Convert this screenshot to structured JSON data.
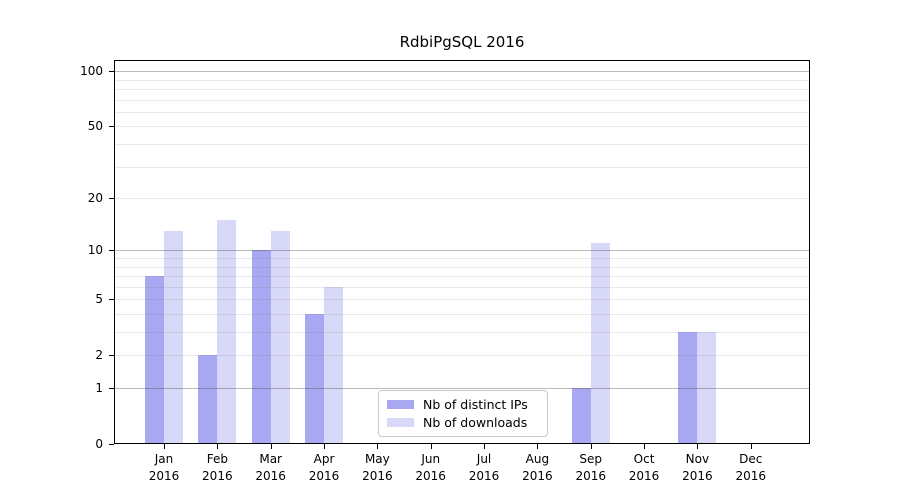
{
  "chart_data": {
    "type": "bar",
    "title": "RdbiPgSQL 2016",
    "categories": [
      "Jan 2016",
      "Feb 2016",
      "Mar 2016",
      "Apr 2016",
      "May 2016",
      "Jun 2016",
      "Jul 2016",
      "Aug 2016",
      "Sep 2016",
      "Oct 2016",
      "Nov 2016",
      "Dec 2016"
    ],
    "series": [
      {
        "name": "Nb of distinct IPs",
        "color": "#a8a8f2",
        "values": [
          7,
          2,
          10,
          4,
          0,
          0,
          0,
          0,
          1,
          0,
          3,
          0
        ]
      },
      {
        "name": "Nb of downloads",
        "color": "#d8d8f8",
        "values": [
          13,
          15,
          13,
          6,
          0,
          0,
          0,
          0,
          11,
          0,
          3,
          0
        ]
      }
    ],
    "xlabel": "",
    "ylabel": "",
    "y_axis": {
      "scale": "log1p",
      "ticks": [
        0,
        1,
        2,
        5,
        10,
        20,
        50,
        100
      ],
      "major_grid": [
        1,
        10,
        100
      ],
      "minor_grid": [
        2,
        3,
        4,
        5,
        6,
        7,
        8,
        9,
        20,
        30,
        40,
        50,
        60,
        70,
        80,
        90
      ],
      "max": 115,
      "ylim": [
        0,
        115
      ]
    },
    "grid": true,
    "legend": {
      "position": "lower center",
      "entries": [
        "Nb of distinct IPs",
        "Nb of downloads"
      ]
    }
  }
}
